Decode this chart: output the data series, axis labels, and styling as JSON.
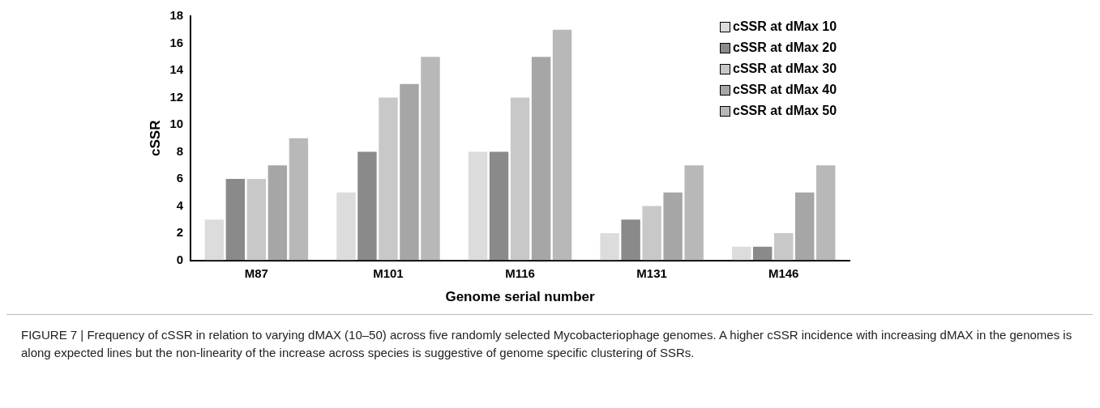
{
  "chart_data": {
    "type": "bar",
    "xlabel": "Genome serial number",
    "ylabel": "cSSR",
    "categories": [
      "M87",
      "M101",
      "M116",
      "M131",
      "M146"
    ],
    "series": [
      {
        "name": "cSSR at dMax 10",
        "color": "#dcdcdc",
        "values": [
          3,
          5,
          8,
          2,
          1
        ]
      },
      {
        "name": "cSSR at dMax 20",
        "color": "#8a8a8a",
        "values": [
          6,
          8,
          8,
          3,
          1
        ]
      },
      {
        "name": "cSSR at dMax 30",
        "color": "#c8c8c8",
        "values": [
          6,
          12,
          12,
          4,
          2
        ]
      },
      {
        "name": "cSSR at dMax 40",
        "color": "#a6a6a6",
        "values": [
          7,
          13,
          15,
          5,
          5
        ]
      },
      {
        "name": "cSSR at dMax 50",
        "color": "#b8b8b8",
        "values": [
          9,
          15,
          17,
          7,
          7
        ]
      }
    ],
    "ylim": [
      0,
      18
    ],
    "yticks": [
      0,
      2,
      4,
      6,
      8,
      10,
      12,
      14,
      16,
      18
    ],
    "grid": false,
    "legend": "top right",
    "annotations": [
      "FIGURE 7 | Frequency of cSSR in relation to varying dMAX (10–50) across five randomly selected Mycobacteriophage genomes. A higher cSSR incidence with increasing dMAX in the genomes is along expected lines but the non-linearity of the increase across species is suggestive of genome specific clustering of SSRs."
    ]
  }
}
